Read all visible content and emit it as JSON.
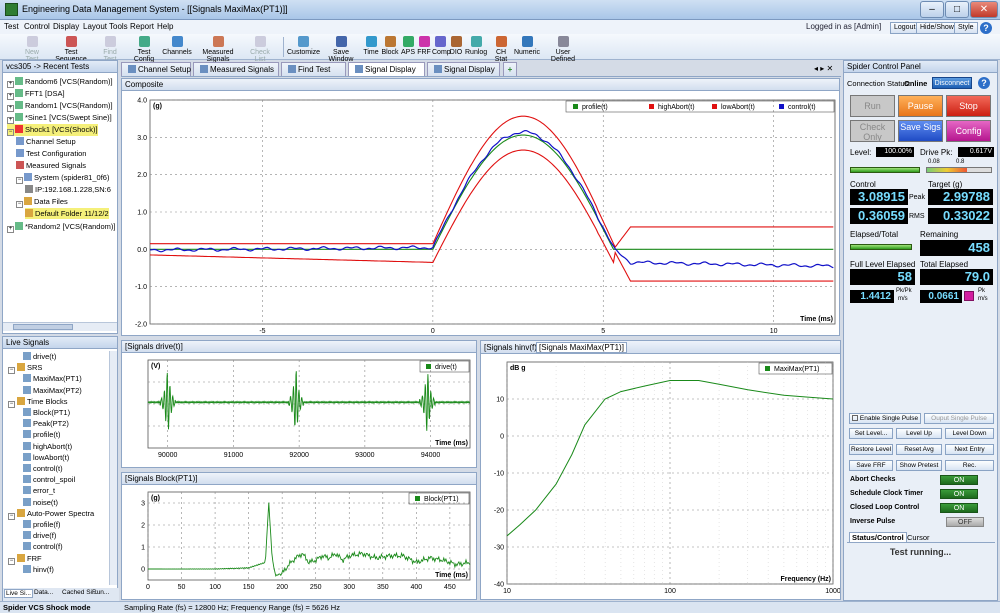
{
  "window": {
    "title": "Engineering Data Management System - [[Signals MaxiMax(PT1)]]",
    "minimize": "–",
    "maximize": "□",
    "close": "✕"
  },
  "menu": [
    "Test",
    "Control",
    "Display",
    "Layout",
    "Tools",
    "Report",
    "Help"
  ],
  "top_right": {
    "login": "Logged in as [Admin]",
    "logout": "Logout",
    "hideshow": "Hide/Show",
    "style": "Style"
  },
  "toolbar": [
    {
      "label": "New Test",
      "icon": "new-test-icon",
      "disabled": true
    },
    {
      "label": "Test Sequence",
      "icon": "test-sequence-icon",
      "disabled": false
    },
    {
      "label": "Find Test",
      "icon": "find-test-icon",
      "disabled": true
    },
    {
      "label": "Test Config",
      "icon": "test-config-icon",
      "disabled": false
    },
    {
      "label": "Channels",
      "icon": "channels-icon",
      "disabled": false
    },
    {
      "label": "Measured Signals",
      "icon": "measured-signals-icon",
      "disabled": false
    },
    {
      "label": "Check List",
      "icon": "check-list-icon",
      "disabled": true
    },
    {
      "label": "Customize",
      "icon": "customize-icon",
      "disabled": false
    },
    {
      "label": "Save Window",
      "icon": "save-window-icon",
      "disabled": false
    },
    {
      "label": "Time",
      "icon": "time-icon",
      "disabled": false
    },
    {
      "label": "Block",
      "icon": "block-icon",
      "disabled": false
    },
    {
      "label": "APS",
      "icon": "aps-icon",
      "disabled": false
    },
    {
      "label": "FRF",
      "icon": "frf-icon",
      "disabled": false
    },
    {
      "label": "Comp",
      "icon": "comp-icon",
      "disabled": false
    },
    {
      "label": "DIO",
      "icon": "dio-icon",
      "disabled": false
    },
    {
      "label": "Runlog",
      "icon": "runlog-icon",
      "disabled": false
    },
    {
      "label": "CH Stat",
      "icon": "ch-stat-icon",
      "disabled": false
    },
    {
      "label": "Numeric",
      "icon": "numeric-icon",
      "disabled": false
    },
    {
      "label": "User Defined",
      "icon": "user-defined-icon",
      "disabled": false
    }
  ],
  "recent": {
    "header": "vcs305 -> Recent Tests",
    "items": [
      "Random6 [VCS(Random)]",
      "FFT1 [DSA]",
      "Random1 [VCS(Random)]",
      "*Sine1 [VCS(Swept Sine)]",
      "Shock1 [VCS(Shock)]",
      "Channel Setup",
      "Test Configuration",
      "Measured Signals",
      "System (spider81_0f6)",
      "IP:192.168.1.228,SN:6",
      "Data Files",
      "Default Folder 11/12/2",
      "*Random2 [VCS(Random)]"
    ]
  },
  "live": {
    "header": "Live Signals",
    "items": [
      "drive(t)",
      "SRS",
      "MaxiMax(PT1)",
      "MaxiMax(PT2)",
      "Time Blocks",
      "Block(PT1)",
      "Peak(PT2)",
      "profile(t)",
      "highAbort(t)",
      "lowAbort(t)",
      "control(t)",
      "control_spoil",
      "error_t",
      "noise(t)",
      "Auto-Power Spectra",
      "profile(f)",
      "drive(f)",
      "control(f)",
      "FRF",
      "hinv(f)"
    ],
    "bottom_tabs": [
      "Live Si...",
      "Data...",
      "Cached Si...",
      "Run..."
    ]
  },
  "doc_tabs": [
    "Channel Setup",
    "Measured Signals",
    "Find Test",
    "Signal Display",
    "Signal Display"
  ],
  "composite": {
    "title": "Composite",
    "ylabel": "(g)",
    "xlabel": "Time (ms)",
    "legend": [
      "profile(t)",
      "highAbort(t)",
      "lowAbort(t)",
      "control(t)"
    ],
    "xticks": [
      "-5",
      "0",
      "5",
      "10"
    ],
    "yticks": [
      "4.0",
      "3.0",
      "2.0",
      "1.0",
      "0.0",
      "-1.0",
      "-2.0"
    ]
  },
  "drive_plot": {
    "title": "[Signals drive(t)]",
    "ylabel": "(V)",
    "xlabel": "Time (ms)",
    "legend": "drive(t)",
    "xticks": [
      "90000",
      "91000",
      "92000",
      "93000",
      "94000"
    ]
  },
  "block_plot": {
    "title": "[Signals Block(PT1)]",
    "ylabel": "(g)",
    "xlabel": "Time (ms)",
    "legend": "Block(PT1)",
    "xticks": [
      "0",
      "50",
      "100",
      "150",
      "200",
      "250",
      "300",
      "350",
      "400",
      "450"
    ],
    "yticks": [
      "3",
      "2",
      "1",
      "0"
    ]
  },
  "srs_tabs": [
    "[Signals hinv(f)]",
    "[Signals MaxiMax(PT1)]"
  ],
  "srs_plot": {
    "ylabel": "dB g",
    "xlabel": "Frequency (Hz)",
    "legend": "MaxiMax(PT1)",
    "xticks": [
      "10",
      "100",
      "1000"
    ],
    "yticks": [
      "10",
      "0",
      "-10",
      "-20",
      "-30",
      "-40"
    ]
  },
  "chart_data": [
    {
      "type": "line",
      "title": "Composite",
      "ylabel": "(g)",
      "xlabel": "Time (ms)",
      "xlim": [
        -8.3,
        11.8
      ],
      "ylim": [
        -2.0,
        4.0
      ],
      "series": [
        {
          "name": "profile(t)",
          "color": "#1a8a1a",
          "x": [
            -8.3,
            0,
            2.5,
            5,
            5.8,
            11.8
          ],
          "y": [
            0,
            0,
            2.4,
            3.0,
            0,
            0
          ]
        },
        {
          "name": "highAbort(t)",
          "color": "#e01010",
          "x": [
            -8.3,
            0,
            2.5,
            5,
            5.8,
            11.8
          ],
          "y": [
            0.15,
            0.15,
            2.8,
            3.5,
            0.6,
            0.6
          ]
        },
        {
          "name": "lowAbort(t)",
          "color": "#e01010",
          "x": [
            -8.3,
            0,
            2.5,
            5,
            5.8,
            11.8
          ],
          "y": [
            -0.15,
            -0.35,
            2.1,
            2.6,
            -0.85,
            -0.85
          ]
        },
        {
          "name": "control(t)",
          "color": "#1010c8",
          "x": [
            -8.3,
            0,
            2.5,
            5,
            5.8,
            11.8
          ],
          "y": [
            -0.02,
            0.05,
            2.5,
            3.08,
            -0.35,
            -0.45
          ]
        }
      ]
    },
    {
      "type": "line",
      "title": "[Signals drive(t)]",
      "ylabel": "(V)",
      "xlabel": "Time (ms)",
      "xlim": [
        89700,
        94600
      ],
      "series": [
        {
          "name": "drive(t)",
          "color": "#1a8a1a",
          "x": [
            90000,
            91950,
            93950
          ],
          "y": [
            0,
            0,
            0
          ]
        }
      ]
    },
    {
      "type": "line",
      "title": "[Signals Block(PT1)]",
      "ylabel": "(g)",
      "xlabel": "Time (ms)",
      "xlim": [
        0,
        480
      ],
      "ylim": [
        -0.5,
        3.5
      ],
      "series": [
        {
          "name": "Block(PT1)",
          "color": "#1a8a1a",
          "x": [
            0,
            50,
            100,
            150,
            175,
            180,
            185,
            190,
            200,
            210,
            220,
            230,
            240,
            250,
            260,
            270,
            280,
            290,
            300,
            320,
            340,
            360,
            380,
            400,
            420,
            440,
            460,
            480
          ],
          "y": [
            0,
            0,
            0,
            0.05,
            0.3,
            3.0,
            0.5,
            -0.3,
            -0.2,
            0.2,
            0.5,
            0.7,
            0.3,
            0.4,
            0.6,
            0.5,
            0.7,
            0.4,
            0.6,
            0.7,
            0.5,
            0.6,
            0.6,
            0.3,
            0.5,
            0.4,
            0.2,
            0.3
          ]
        }
      ]
    },
    {
      "type": "line",
      "title": "[Signals MaxiMax(PT1)]",
      "ylabel": "dB g",
      "xlabel": "Frequency (Hz)",
      "xlog": true,
      "xlim": [
        10,
        1000
      ],
      "ylim": [
        -40,
        20
      ],
      "series": [
        {
          "name": "MaxiMax(PT1)",
          "color": "#1a8a1a",
          "x": [
            10,
            12,
            15,
            20,
            25,
            30,
            40,
            50,
            70,
            100,
            150,
            200,
            300,
            500,
            700,
            1000
          ],
          "y": [
            -27,
            -24,
            -20,
            -13,
            -5,
            3,
            10,
            12,
            13.5,
            15,
            15,
            14,
            12.5,
            11,
            10.5,
            10
          ]
        }
      ]
    }
  ],
  "spider": {
    "header": "Spider Control Panel",
    "conn_label": "Connection Status:",
    "conn_value": "Online",
    "disconnect": "Disconnect",
    "run": "Run",
    "pause": "Pause",
    "stop": "Stop",
    "check": "Check Only",
    "save": "Save Sigs",
    "config": "Config",
    "level_label": "Level:",
    "level_value": "100.00%",
    "drive_label": "Drive Pk:",
    "drive_value": "0.617V",
    "drive_scale": [
      "0.08",
      "0.8"
    ],
    "control_label": "Control",
    "target_label": "Target (g)",
    "control_peak": "3.08915",
    "peak_label": "Peak",
    "target_peak": "2.99788",
    "control_rms": "0.36059",
    "rms_label": "RMS",
    "target_rms": "0.33022",
    "elapsed_label": "Elapsed/Total",
    "remaining_label": "Remaining",
    "remaining": "458",
    "full_label": "Full Level Elapsed",
    "full_value": "58",
    "total_label": "Total Elapsed",
    "total_value": "79.0",
    "pkpk_value": "1.4412",
    "pkpk_unit": "Pk/Pk",
    "pkpk_sub": "m/s",
    "pk_value": "0.0661",
    "pk_unit": "Pk",
    "pk_sub": "m/s",
    "level_fill": 1.0,
    "drive_fill": 0.62,
    "elapsed_fill": 1.0,
    "full_fill": 1.0,
    "buttons": {
      "enable_single": "Enable Single Pulse",
      "output_single": "Ouput Single Pulse",
      "set_level": "Set Level...",
      "level_up": "Level Up",
      "level_down": "Level Down",
      "restore": "Restore Level",
      "reset_avg": "Reset Avg",
      "next_entry": "Next Entry",
      "save_frf": "Save FRF",
      "show_pretest": "Show Pretest",
      "rec": "Rec."
    },
    "toggles": [
      {
        "label": "Abort Checks",
        "state": "ON"
      },
      {
        "label": "Schedule Clock Timer",
        "state": "ON"
      },
      {
        "label": "Closed Loop Control",
        "state": "ON"
      },
      {
        "label": "Inverse Pulse",
        "state": "OFF"
      }
    ],
    "tabs": [
      "Status/Control",
      "Cursor"
    ],
    "status": "Test running..."
  },
  "statusbar": {
    "mode": "Spider VCS Shock mode",
    "rate": "Sampling Rate (fs) = 12800 Hz; Frequency Range (fs) = 5626 Hz"
  }
}
